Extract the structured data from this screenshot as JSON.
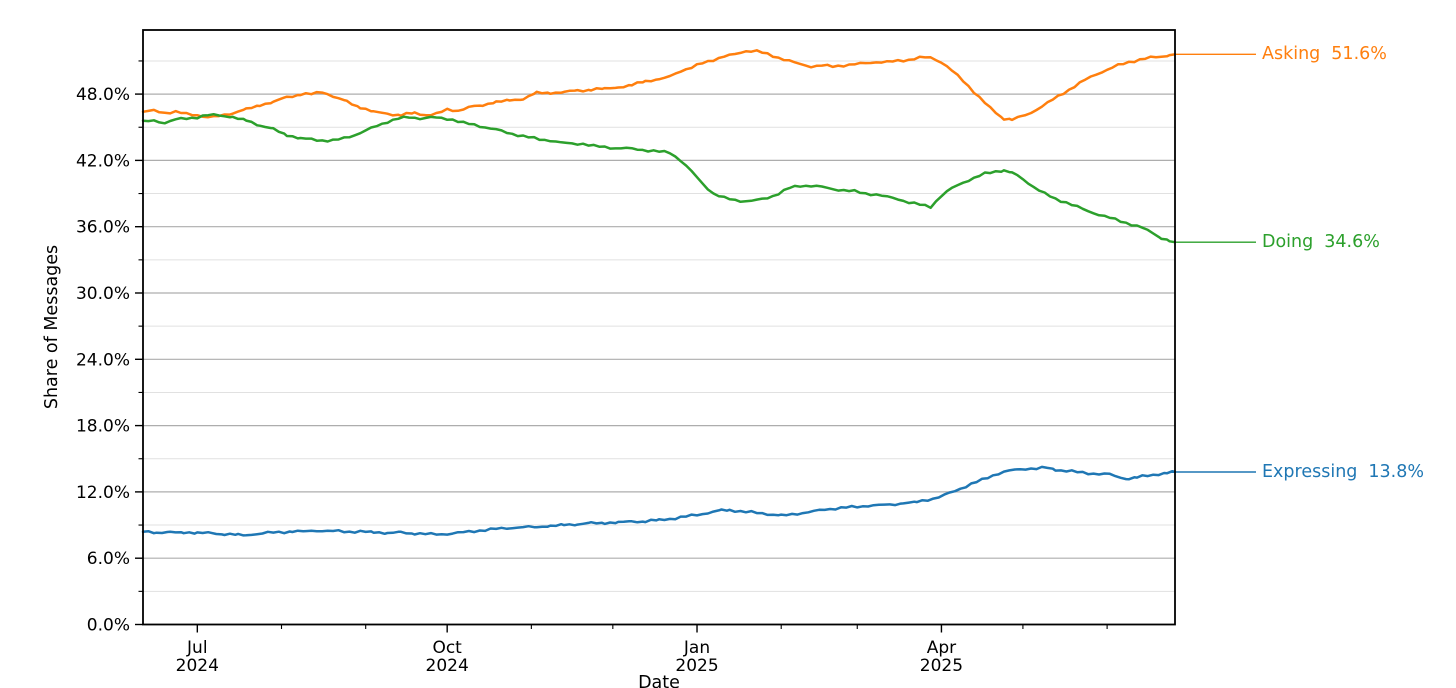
{
  "chart_data": {
    "type": "line",
    "title": "",
    "xlabel": "Date",
    "ylabel": "Share of Messages",
    "x_unit": "days since 2024-06-11 (left edge of plot)",
    "xlim": [
      0,
      380
    ],
    "ylim": [
      0,
      53.8
    ],
    "grid": {
      "major_color": "#adadad",
      "minor_color": "#e1e1e1",
      "vertical": "off"
    },
    "legend_position": "right-edge-end-labels",
    "y_major_ticks": [
      {
        "value": 0,
        "label": "0.0%"
      },
      {
        "value": 6,
        "label": "6.0%"
      },
      {
        "value": 12,
        "label": "12.0%"
      },
      {
        "value": 18,
        "label": "18.0%"
      },
      {
        "value": 24,
        "label": "24.0%"
      },
      {
        "value": 30,
        "label": "30.0%"
      },
      {
        "value": 36,
        "label": "36.0%"
      },
      {
        "value": 42,
        "label": "42.0%"
      },
      {
        "value": 48,
        "label": "48.0%"
      }
    ],
    "y_minor_ticks": [
      3,
      9,
      15,
      21,
      27,
      33,
      39,
      45,
      51
    ],
    "x_major_ticks": [
      {
        "day": 20,
        "line1": "Jul",
        "line2": "2024"
      },
      {
        "day": 112,
        "line1": "Oct",
        "line2": "2024"
      },
      {
        "day": 204,
        "line1": "Jan",
        "line2": "2025"
      },
      {
        "day": 294,
        "line1": "Apr",
        "line2": "2025"
      }
    ],
    "x_minor_ticks": [
      51,
      82,
      143,
      173,
      235,
      263,
      324,
      355
    ],
    "series": [
      {
        "name": "Asking",
        "color": "#ff7f0e",
        "label_name": "Asking",
        "label_value": "51.6%",
        "points": [
          [
            0,
            46.4
          ],
          [
            4,
            46.5
          ],
          [
            8,
            46.3
          ],
          [
            12,
            46.4
          ],
          [
            16,
            46.2
          ],
          [
            20,
            46.1
          ],
          [
            24,
            45.9
          ],
          [
            28,
            46.0
          ],
          [
            33,
            46.3
          ],
          [
            38,
            46.6
          ],
          [
            43,
            47.0
          ],
          [
            48,
            47.3
          ],
          [
            53,
            47.7
          ],
          [
            58,
            48.0
          ],
          [
            62,
            48.0
          ],
          [
            66,
            48.2
          ],
          [
            70,
            47.8
          ],
          [
            75,
            47.3
          ],
          [
            80,
            46.8
          ],
          [
            85,
            46.4
          ],
          [
            90,
            46.2
          ],
          [
            95,
            46.1
          ],
          [
            100,
            46.3
          ],
          [
            104,
            46.1
          ],
          [
            108,
            46.2
          ],
          [
            112,
            46.6
          ],
          [
            116,
            46.5
          ],
          [
            120,
            46.8
          ],
          [
            125,
            47.0
          ],
          [
            130,
            47.3
          ],
          [
            135,
            47.4
          ],
          [
            140,
            47.6
          ],
          [
            145,
            48.1
          ],
          [
            150,
            48.1
          ],
          [
            155,
            48.2
          ],
          [
            160,
            48.3
          ],
          [
            165,
            48.4
          ],
          [
            170,
            48.5
          ],
          [
            175,
            48.6
          ],
          [
            180,
            48.8
          ],
          [
            185,
            49.2
          ],
          [
            190,
            49.3
          ],
          [
            194,
            49.6
          ],
          [
            198,
            50.1
          ],
          [
            202,
            50.4
          ],
          [
            206,
            50.8
          ],
          [
            210,
            51.1
          ],
          [
            214,
            51.4
          ],
          [
            218,
            51.6
          ],
          [
            222,
            51.9
          ],
          [
            226,
            51.9
          ],
          [
            230,
            51.6
          ],
          [
            234,
            51.3
          ],
          [
            238,
            51.0
          ],
          [
            242,
            50.7
          ],
          [
            246,
            50.5
          ],
          [
            250,
            50.6
          ],
          [
            254,
            50.5
          ],
          [
            258,
            50.6
          ],
          [
            262,
            50.7
          ],
          [
            266,
            50.8
          ],
          [
            270,
            50.9
          ],
          [
            274,
            50.9
          ],
          [
            278,
            51.0
          ],
          [
            282,
            51.1
          ],
          [
            286,
            51.3
          ],
          [
            290,
            51.3
          ],
          [
            294,
            50.9
          ],
          [
            298,
            50.1
          ],
          [
            302,
            49.2
          ],
          [
            306,
            48.2
          ],
          [
            310,
            47.2
          ],
          [
            314,
            46.3
          ],
          [
            317,
            45.8
          ],
          [
            320,
            45.7
          ],
          [
            323,
            45.9
          ],
          [
            327,
            46.3
          ],
          [
            331,
            46.9
          ],
          [
            335,
            47.5
          ],
          [
            339,
            48.1
          ],
          [
            343,
            48.7
          ],
          [
            347,
            49.3
          ],
          [
            351,
            49.8
          ],
          [
            355,
            50.2
          ],
          [
            359,
            50.6
          ],
          [
            363,
            50.9
          ],
          [
            367,
            51.1
          ],
          [
            371,
            51.3
          ],
          [
            375,
            51.4
          ],
          [
            378,
            51.5
          ],
          [
            380,
            51.6
          ]
        ]
      },
      {
        "name": "Doing",
        "color": "#2ca02c",
        "label_name": "Doing",
        "label_value": "34.6%",
        "points": [
          [
            0,
            45.5
          ],
          [
            4,
            45.6
          ],
          [
            8,
            45.4
          ],
          [
            12,
            45.7
          ],
          [
            16,
            45.8
          ],
          [
            20,
            45.9
          ],
          [
            24,
            46.1
          ],
          [
            28,
            46.1
          ],
          [
            33,
            45.9
          ],
          [
            38,
            45.6
          ],
          [
            43,
            45.2
          ],
          [
            48,
            44.8
          ],
          [
            53,
            44.3
          ],
          [
            58,
            44.0
          ],
          [
            62,
            43.9
          ],
          [
            66,
            43.8
          ],
          [
            70,
            43.8
          ],
          [
            74,
            44.0
          ],
          [
            78,
            44.3
          ],
          [
            82,
            44.7
          ],
          [
            86,
            45.1
          ],
          [
            90,
            45.5
          ],
          [
            94,
            45.8
          ],
          [
            98,
            45.9
          ],
          [
            102,
            45.8
          ],
          [
            106,
            45.9
          ],
          [
            110,
            45.8
          ],
          [
            114,
            45.7
          ],
          [
            118,
            45.4
          ],
          [
            122,
            45.2
          ],
          [
            126,
            45.0
          ],
          [
            130,
            44.8
          ],
          [
            134,
            44.5
          ],
          [
            138,
            44.3
          ],
          [
            142,
            44.1
          ],
          [
            146,
            43.9
          ],
          [
            150,
            43.8
          ],
          [
            154,
            43.6
          ],
          [
            158,
            43.5
          ],
          [
            162,
            43.5
          ],
          [
            166,
            43.3
          ],
          [
            170,
            43.2
          ],
          [
            174,
            43.1
          ],
          [
            178,
            43.1
          ],
          [
            182,
            43.0
          ],
          [
            186,
            42.9
          ],
          [
            190,
            42.8
          ],
          [
            194,
            42.7
          ],
          [
            198,
            42.0
          ],
          [
            202,
            41.0
          ],
          [
            206,
            39.9
          ],
          [
            210,
            39.0
          ],
          [
            214,
            38.6
          ],
          [
            218,
            38.4
          ],
          [
            222,
            38.3
          ],
          [
            226,
            38.4
          ],
          [
            230,
            38.6
          ],
          [
            234,
            39.0
          ],
          [
            238,
            39.5
          ],
          [
            242,
            39.7
          ],
          [
            246,
            39.7
          ],
          [
            250,
            39.6
          ],
          [
            254,
            39.4
          ],
          [
            258,
            39.3
          ],
          [
            262,
            39.2
          ],
          [
            266,
            39.0
          ],
          [
            270,
            38.9
          ],
          [
            274,
            38.7
          ],
          [
            278,
            38.5
          ],
          [
            282,
            38.2
          ],
          [
            286,
            38.0
          ],
          [
            290,
            37.8
          ],
          [
            294,
            38.8
          ],
          [
            298,
            39.5
          ],
          [
            302,
            40.0
          ],
          [
            306,
            40.4
          ],
          [
            310,
            40.8
          ],
          [
            314,
            41.0
          ],
          [
            317,
            41.1
          ],
          [
            320,
            40.9
          ],
          [
            324,
            40.3
          ],
          [
            328,
            39.6
          ],
          [
            332,
            39.0
          ],
          [
            336,
            38.5
          ],
          [
            340,
            38.2
          ],
          [
            344,
            37.8
          ],
          [
            348,
            37.4
          ],
          [
            352,
            37.1
          ],
          [
            356,
            36.8
          ],
          [
            360,
            36.5
          ],
          [
            364,
            36.2
          ],
          [
            368,
            35.9
          ],
          [
            372,
            35.4
          ],
          [
            375,
            35.0
          ],
          [
            378,
            34.7
          ],
          [
            380,
            34.6
          ]
        ]
      },
      {
        "name": "Expressing",
        "color": "#1f77b4",
        "label_name": "Expressing",
        "label_value": "13.8%",
        "points": [
          [
            0,
            8.4
          ],
          [
            5,
            8.35
          ],
          [
            10,
            8.3
          ],
          [
            15,
            8.35
          ],
          [
            20,
            8.3
          ],
          [
            25,
            8.25
          ],
          [
            30,
            8.2
          ],
          [
            35,
            8.1
          ],
          [
            38,
            8.1
          ],
          [
            42,
            8.2
          ],
          [
            46,
            8.3
          ],
          [
            50,
            8.35
          ],
          [
            55,
            8.4
          ],
          [
            60,
            8.45
          ],
          [
            64,
            8.5
          ],
          [
            68,
            8.45
          ],
          [
            72,
            8.45
          ],
          [
            76,
            8.4
          ],
          [
            80,
            8.4
          ],
          [
            85,
            8.35
          ],
          [
            90,
            8.3
          ],
          [
            95,
            8.3
          ],
          [
            100,
            8.25
          ],
          [
            104,
            8.2
          ],
          [
            108,
            8.15
          ],
          [
            112,
            8.2
          ],
          [
            116,
            8.3
          ],
          [
            120,
            8.4
          ],
          [
            124,
            8.5
          ],
          [
            128,
            8.6
          ],
          [
            132,
            8.7
          ],
          [
            136,
            8.75
          ],
          [
            140,
            8.8
          ],
          [
            145,
            8.85
          ],
          [
            150,
            8.9
          ],
          [
            155,
            9.0
          ],
          [
            160,
            9.1
          ],
          [
            165,
            9.15
          ],
          [
            170,
            9.2
          ],
          [
            175,
            9.25
          ],
          [
            180,
            9.3
          ],
          [
            185,
            9.35
          ],
          [
            190,
            9.45
          ],
          [
            194,
            9.55
          ],
          [
            198,
            9.7
          ],
          [
            202,
            9.85
          ],
          [
            206,
            10.0
          ],
          [
            210,
            10.2
          ],
          [
            213,
            10.3
          ],
          [
            216,
            10.35
          ],
          [
            220,
            10.25
          ],
          [
            224,
            10.15
          ],
          [
            228,
            10.05
          ],
          [
            232,
            9.95
          ],
          [
            235,
            9.85
          ],
          [
            239,
            9.95
          ],
          [
            243,
            10.1
          ],
          [
            247,
            10.25
          ],
          [
            251,
            10.4
          ],
          [
            255,
            10.5
          ],
          [
            259,
            10.6
          ],
          [
            263,
            10.65
          ],
          [
            267,
            10.75
          ],
          [
            271,
            10.8
          ],
          [
            275,
            10.85
          ],
          [
            280,
            10.95
          ],
          [
            285,
            11.1
          ],
          [
            289,
            11.3
          ],
          [
            293,
            11.5
          ],
          [
            297,
            11.9
          ],
          [
            301,
            12.3
          ],
          [
            305,
            12.7
          ],
          [
            309,
            13.1
          ],
          [
            313,
            13.5
          ],
          [
            317,
            13.8
          ],
          [
            321,
            14.0
          ],
          [
            325,
            14.1
          ],
          [
            329,
            14.1
          ],
          [
            333,
            14.2
          ],
          [
            336,
            14.0
          ],
          [
            340,
            13.9
          ],
          [
            344,
            13.8
          ],
          [
            348,
            13.7
          ],
          [
            352,
            13.6
          ],
          [
            356,
            13.6
          ],
          [
            360,
            13.3
          ],
          [
            363,
            13.2
          ],
          [
            366,
            13.3
          ],
          [
            370,
            13.5
          ],
          [
            374,
            13.6
          ],
          [
            377,
            13.7
          ],
          [
            380,
            13.8
          ]
        ]
      }
    ]
  }
}
